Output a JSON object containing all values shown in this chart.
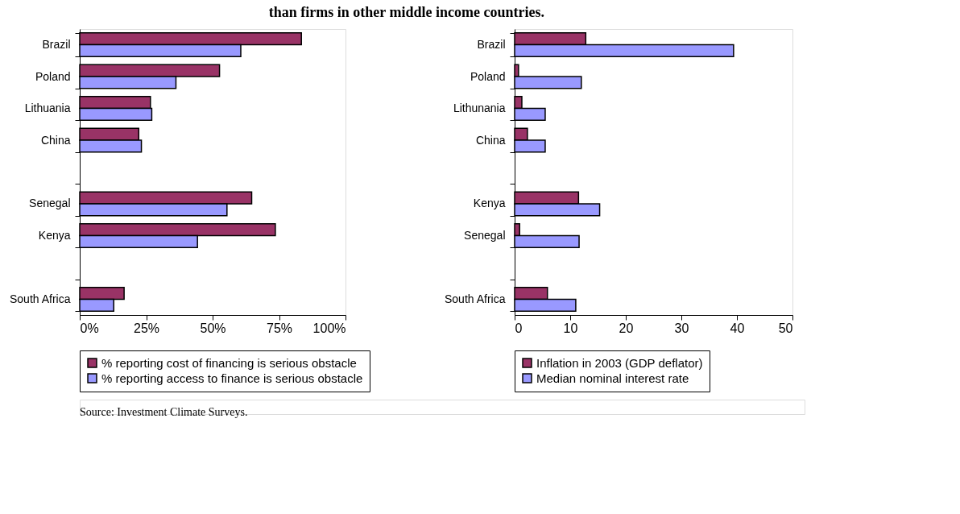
{
  "chart_data": [
    {
      "type": "bar",
      "orientation": "horizontal",
      "title": "than firms in other middle income countries.",
      "annotations": [
        "Source: Investment Climate Surveys."
      ],
      "categories": [
        "Brazil",
        "Poland",
        "Lithuania",
        "China",
        null,
        "Senegal",
        "Kenya",
        null,
        "South Africa"
      ],
      "series": [
        {
          "name": "% reporting cost of financing is serious obstacle",
          "color": "#993366",
          "values": [
            83.4,
            52.6,
            26.6,
            22.2,
            null,
            64.7,
            73.6,
            null,
            16.7
          ]
        },
        {
          "name": "% reporting access to finance is serious obstacle",
          "color": "#9999ff",
          "values": [
            60.6,
            36.2,
            27.1,
            23.2,
            null,
            55.4,
            44.3,
            null,
            12.8
          ]
        }
      ],
      "xlim": [
        0,
        100
      ],
      "xticks": [
        {
          "value": 0,
          "label": "0%"
        },
        {
          "value": 25,
          "label": "25%"
        },
        {
          "value": 50,
          "label": "50%"
        },
        {
          "value": 75,
          "label": "75%"
        },
        {
          "value": 100,
          "label": "100%"
        }
      ],
      "grid": false,
      "legend": "bottom"
    },
    {
      "type": "bar",
      "orientation": "horizontal",
      "categories": [
        "Brazil",
        "Poland",
        "Lithunania",
        "China",
        null,
        "Kenya",
        "Senegal",
        null,
        "South Africa"
      ],
      "series": [
        {
          "name": "Inflation in 2003 (GDP deflator)",
          "color": "#993366",
          "values": [
            12.8,
            0.7,
            1.3,
            2.3,
            null,
            11.5,
            0.9,
            null,
            5.9
          ]
        },
        {
          "name": "Median nominal interest rate",
          "color": "#9999ff",
          "values": [
            39.4,
            12.0,
            5.5,
            5.5,
            null,
            15.3,
            11.6,
            null,
            11.0
          ]
        }
      ],
      "xlim": [
        0,
        50
      ],
      "xticks": [
        0,
        10,
        20,
        30,
        40,
        50
      ],
      "grid": false,
      "legend": "bottom"
    }
  ]
}
